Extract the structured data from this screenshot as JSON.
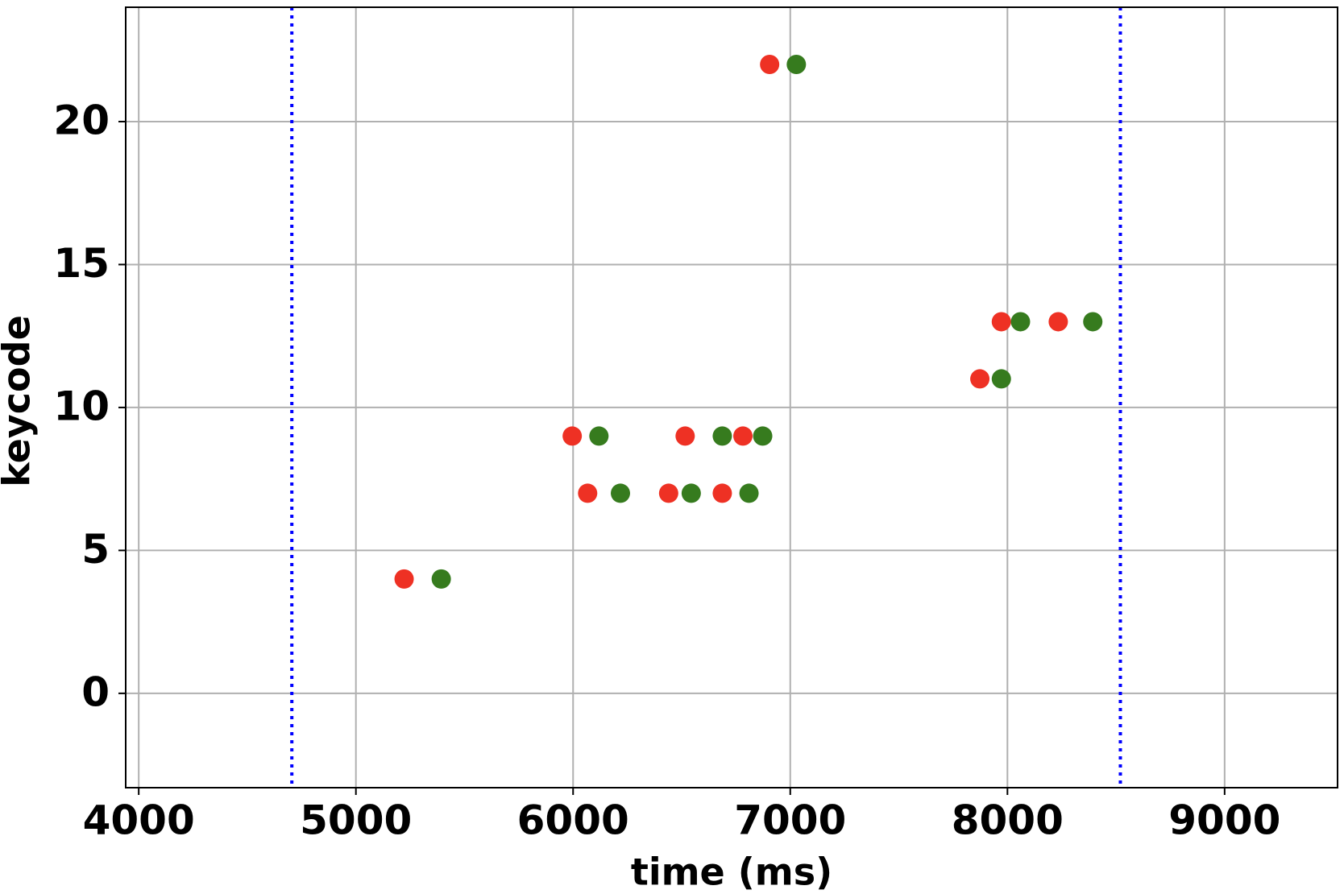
{
  "chart_data": {
    "type": "scatter",
    "x_label": "time (ms)",
    "y_label": "keycode",
    "xlim": [
      3940,
      9520
    ],
    "ylim": [
      -3.3,
      24
    ],
    "xticks": [
      4000,
      5000,
      6000,
      7000,
      8000,
      9000
    ],
    "yticks": [
      0,
      5,
      10,
      15,
      20
    ],
    "grid": true,
    "vlines": [
      {
        "x": 4705,
        "color": "#0000ff",
        "style": "dotted"
      },
      {
        "x": 8520,
        "color": "#0000ff",
        "style": "dotted"
      }
    ],
    "series": [
      {
        "color": "#ee3124",
        "x": [
          5222,
          5996,
          6067,
          6440,
          6516,
          6687,
          6782,
          6905,
          7873,
          7972,
          8234
        ],
        "values": [
          4,
          9,
          7,
          7,
          9,
          7,
          9,
          22,
          11,
          13,
          13
        ]
      },
      {
        "color": "#367b1e",
        "x": [
          5393,
          6119,
          6218,
          6544,
          6687,
          6810,
          6873,
          7028,
          7972,
          8060,
          8393
        ],
        "values": [
          4,
          9,
          7,
          7,
          9,
          7,
          9,
          22,
          11,
          13,
          13
        ]
      }
    ]
  }
}
